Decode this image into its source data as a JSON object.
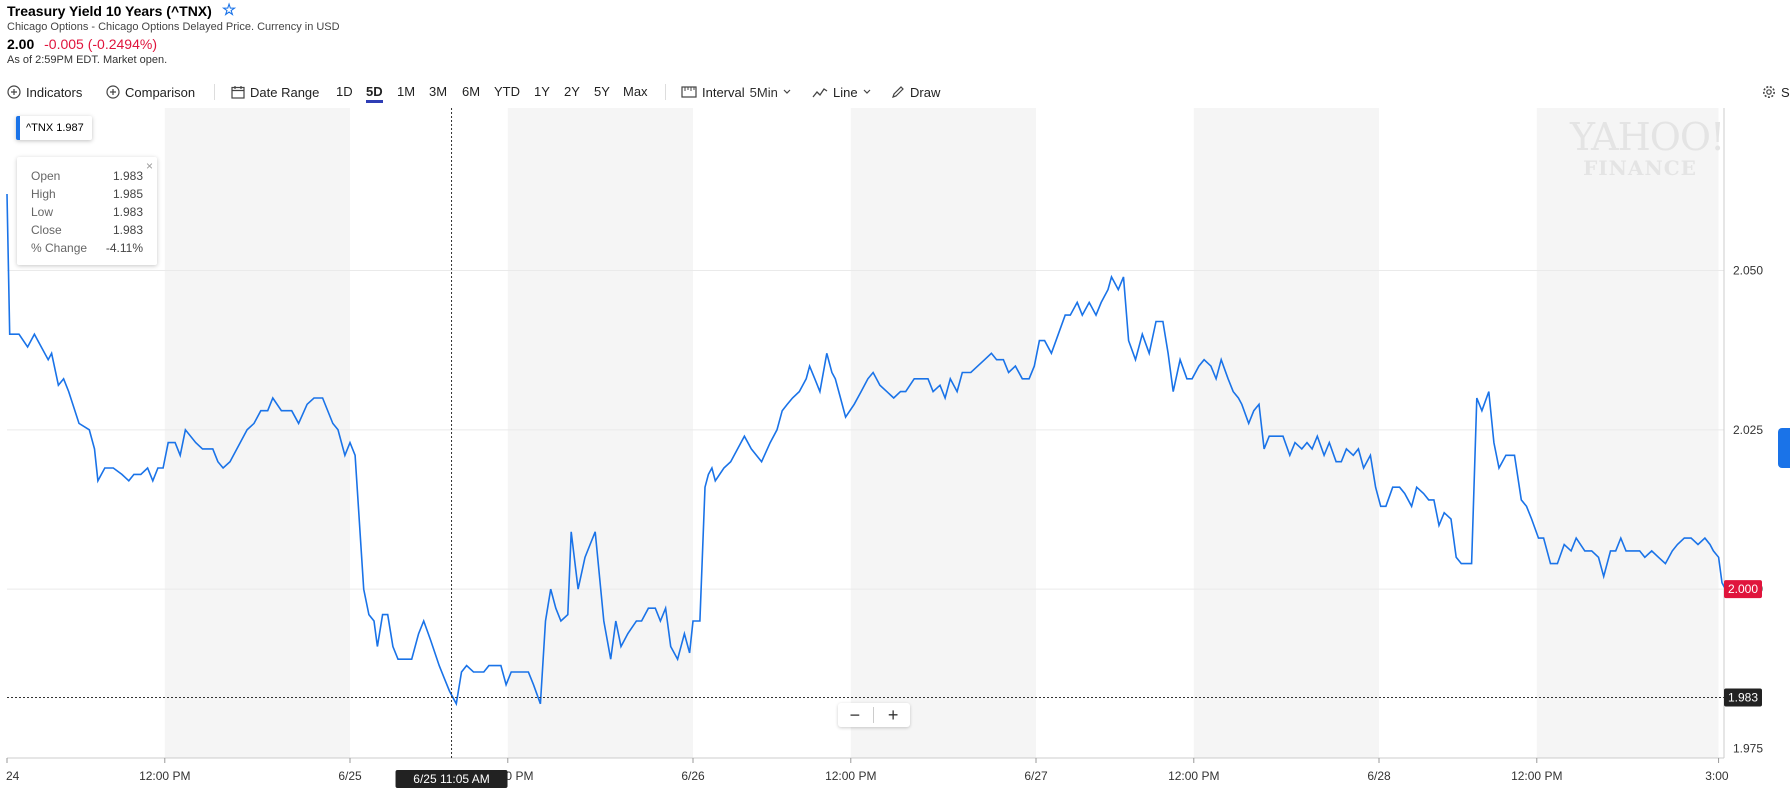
{
  "header": {
    "title": "Treasury Yield 10 Years (^TNX)",
    "source": "Chicago Options - Chicago Options Delayed Price. Currency in USD",
    "price": "2.00",
    "change": "-0.005 (-0.2494%)",
    "as_of": "As of 2:59PM EDT. Market open."
  },
  "toolbar": {
    "indicators": "Indicators",
    "comparison": "Comparison",
    "date_range": "Date Range",
    "ranges": [
      "1D",
      "5D",
      "1M",
      "3M",
      "6M",
      "YTD",
      "1Y",
      "2Y",
      "5Y",
      "Max"
    ],
    "active_range": "5D",
    "interval_label": "Interval",
    "interval_value": "5Min",
    "chart_type": "Line",
    "draw": "Draw",
    "settings_partial": "S"
  },
  "legend": {
    "label": "^TNX 1.987"
  },
  "ohlc": {
    "rows": [
      {
        "label": "Open",
        "value": "1.983"
      },
      {
        "label": "High",
        "value": "1.985"
      },
      {
        "label": "Low",
        "value": "1.983"
      },
      {
        "label": "Close",
        "value": "1.983"
      },
      {
        "label": "% Change",
        "value": "-4.11%"
      }
    ]
  },
  "crosshair_label": "6/25 11:05 AM",
  "crosshair_price": "1.983",
  "current_price_label": "2.000",
  "logo": {
    "line1": "YAHOO!",
    "line2": "FINANCE"
  },
  "colors": {
    "line": "#1a73e8",
    "negative": "#e0143c",
    "active_tab": "#2e3db5",
    "shade": "#f5f5f5"
  },
  "chart_data": {
    "type": "line",
    "title": "",
    "xlabel": "",
    "ylabel": "",
    "ylim": [
      1.9735,
      2.0755
    ],
    "y_ticks": [
      "2.050",
      "2.025",
      "2.000",
      "1.975"
    ],
    "y_tick_values": [
      2.05,
      2.025,
      2.0,
      1.975
    ],
    "x_ticks": [
      "24",
      "12:00 PM",
      "6/25",
      "12:00 PM",
      "6/26",
      "12:00 PM",
      "6/27",
      "12:00 PM",
      "6/28",
      "12:00 PM",
      "3:00"
    ],
    "x_tick_values": [
      0,
      0.46,
      1,
      1.46,
      2,
      2.46,
      3,
      3.46,
      4,
      4.46,
      4.99
    ],
    "shaded_sessions": [
      [
        0.46,
        1
      ],
      [
        1.46,
        2
      ],
      [
        2.46,
        3
      ],
      [
        3.46,
        4
      ],
      [
        4.46,
        4.99
      ]
    ],
    "x_unit": "trading days from 6/24 session start",
    "crosshair_x": 1.296,
    "series": [
      {
        "values": [
          [
            0,
            2.062
          ],
          [
            0.008,
            2.04
          ],
          [
            0.035,
            2.04
          ],
          [
            0.06,
            2.038
          ],
          [
            0.08,
            2.04
          ],
          [
            0.1,
            2.038
          ],
          [
            0.12,
            2.036
          ],
          [
            0.13,
            2.037
          ],
          [
            0.15,
            2.032
          ],
          [
            0.165,
            2.033
          ],
          [
            0.18,
            2.031
          ],
          [
            0.21,
            2.026
          ],
          [
            0.24,
            2.025
          ],
          [
            0.255,
            2.022
          ],
          [
            0.265,
            2.017
          ],
          [
            0.285,
            2.019
          ],
          [
            0.31,
            2.019
          ],
          [
            0.335,
            2.018
          ],
          [
            0.355,
            2.017
          ],
          [
            0.37,
            2.018
          ],
          [
            0.39,
            2.018
          ],
          [
            0.41,
            2.019
          ],
          [
            0.425,
            2.017
          ],
          [
            0.44,
            2.019
          ],
          [
            0.455,
            2.019
          ],
          [
            0.47,
            2.023
          ],
          [
            0.49,
            2.023
          ],
          [
            0.505,
            2.021
          ],
          [
            0.52,
            2.025
          ],
          [
            0.55,
            2.023
          ],
          [
            0.57,
            2.022
          ],
          [
            0.6,
            2.022
          ],
          [
            0.615,
            2.02
          ],
          [
            0.63,
            2.019
          ],
          [
            0.65,
            2.02
          ],
          [
            0.7,
            2.025
          ],
          [
            0.72,
            2.026
          ],
          [
            0.74,
            2.028
          ],
          [
            0.76,
            2.028
          ],
          [
            0.775,
            2.03
          ],
          [
            0.8,
            2.028
          ],
          [
            0.83,
            2.028
          ],
          [
            0.85,
            2.026
          ],
          [
            0.875,
            2.029
          ],
          [
            0.895,
            2.03
          ],
          [
            0.92,
            2.03
          ],
          [
            0.95,
            2.026
          ],
          [
            0.965,
            2.025
          ],
          [
            0.985,
            2.021
          ],
          [
            1.0,
            2.023
          ],
          [
            1.015,
            2.021
          ],
          [
            1.04,
            2.0
          ],
          [
            1.055,
            1.996
          ],
          [
            1.07,
            1.995
          ],
          [
            1.08,
            1.991
          ],
          [
            1.095,
            1.996
          ],
          [
            1.11,
            1.996
          ],
          [
            1.125,
            1.991
          ],
          [
            1.14,
            1.989
          ],
          [
            1.17,
            1.989
          ],
          [
            1.18,
            1.989
          ],
          [
            1.2,
            1.993
          ],
          [
            1.215,
            1.995
          ],
          [
            1.235,
            1.992
          ],
          [
            1.26,
            1.988
          ],
          [
            1.275,
            1.986
          ],
          [
            1.29,
            1.984
          ],
          [
            1.3,
            1.983
          ],
          [
            1.31,
            1.982
          ],
          [
            1.325,
            1.987
          ],
          [
            1.34,
            1.988
          ],
          [
            1.36,
            1.987
          ],
          [
            1.39,
            1.987
          ],
          [
            1.405,
            1.988
          ],
          [
            1.44,
            1.988
          ],
          [
            1.455,
            1.985
          ],
          [
            1.47,
            1.987
          ],
          [
            1.52,
            1.987
          ],
          [
            1.535,
            1.985
          ],
          [
            1.555,
            1.982
          ],
          [
            1.57,
            1.995
          ],
          [
            1.585,
            2.0
          ],
          [
            1.6,
            1.997
          ],
          [
            1.615,
            1.995
          ],
          [
            1.635,
            1.996
          ],
          [
            1.645,
            2.009
          ],
          [
            1.665,
            2.0
          ],
          [
            1.685,
            2.005
          ],
          [
            1.7,
            2.007
          ],
          [
            1.715,
            2.009
          ],
          [
            1.74,
            1.995
          ],
          [
            1.76,
            1.989
          ],
          [
            1.775,
            1.995
          ],
          [
            1.79,
            1.991
          ],
          [
            1.81,
            1.993
          ],
          [
            1.835,
            1.995
          ],
          [
            1.85,
            1.995
          ],
          [
            1.87,
            1.997
          ],
          [
            1.89,
            1.997
          ],
          [
            1.905,
            1.995
          ],
          [
            1.92,
            1.997
          ],
          [
            1.935,
            1.991
          ],
          [
            1.955,
            1.989
          ],
          [
            1.975,
            1.993
          ],
          [
            1.99,
            1.99
          ],
          [
            2.0,
            1.995
          ],
          [
            2.02,
            1.995
          ],
          [
            2.035,
            2.016
          ],
          [
            2.045,
            2.018
          ],
          [
            2.055,
            2.019
          ],
          [
            2.065,
            2.017
          ],
          [
            2.09,
            2.019
          ],
          [
            2.11,
            2.02
          ],
          [
            2.13,
            2.022
          ],
          [
            2.15,
            2.024
          ],
          [
            2.17,
            2.022
          ],
          [
            2.2,
            2.02
          ],
          [
            2.225,
            2.023
          ],
          [
            2.245,
            2.025
          ],
          [
            2.26,
            2.028
          ],
          [
            2.275,
            2.029
          ],
          [
            2.29,
            2.03
          ],
          [
            2.31,
            2.031
          ],
          [
            2.33,
            2.033
          ],
          [
            2.34,
            2.035
          ],
          [
            2.355,
            2.033
          ],
          [
            2.37,
            2.031
          ],
          [
            2.39,
            2.037
          ],
          [
            2.405,
            2.034
          ],
          [
            2.415,
            2.033
          ],
          [
            2.43,
            2.03
          ],
          [
            2.445,
            2.027
          ],
          [
            2.47,
            2.029
          ],
          [
            2.49,
            2.031
          ],
          [
            2.51,
            2.033
          ],
          [
            2.525,
            2.034
          ],
          [
            2.545,
            2.032
          ],
          [
            2.565,
            2.031
          ],
          [
            2.585,
            2.03
          ],
          [
            2.605,
            2.031
          ],
          [
            2.62,
            2.031
          ],
          [
            2.645,
            2.033
          ],
          [
            2.67,
            2.033
          ],
          [
            2.685,
            2.033
          ],
          [
            2.7,
            2.031
          ],
          [
            2.72,
            2.032
          ],
          [
            2.735,
            2.03
          ],
          [
            2.75,
            2.033
          ],
          [
            2.77,
            2.031
          ],
          [
            2.785,
            2.034
          ],
          [
            2.81,
            2.034
          ],
          [
            2.83,
            2.035
          ],
          [
            2.85,
            2.036
          ],
          [
            2.87,
            2.037
          ],
          [
            2.885,
            2.036
          ],
          [
            2.905,
            2.036
          ],
          [
            2.92,
            2.034
          ],
          [
            2.94,
            2.035
          ],
          [
            2.96,
            2.033
          ],
          [
            2.98,
            2.033
          ],
          [
            2.995,
            2.035
          ],
          [
            3.01,
            2.039
          ],
          [
            3.025,
            2.039
          ],
          [
            3.045,
            2.037
          ],
          [
            3.065,
            2.04
          ],
          [
            3.085,
            2.043
          ],
          [
            3.1,
            2.043
          ],
          [
            3.12,
            2.045
          ],
          [
            3.135,
            2.043
          ],
          [
            3.155,
            2.045
          ],
          [
            3.175,
            2.043
          ],
          [
            3.19,
            2.045
          ],
          [
            3.21,
            2.047
          ],
          [
            3.22,
            2.049
          ],
          [
            3.24,
            2.047
          ],
          [
            3.255,
            2.049
          ],
          [
            3.27,
            2.039
          ],
          [
            3.29,
            2.036
          ],
          [
            3.31,
            2.04
          ],
          [
            3.33,
            2.037
          ],
          [
            3.35,
            2.042
          ],
          [
            3.37,
            2.042
          ],
          [
            3.385,
            2.037
          ],
          [
            3.4,
            2.031
          ],
          [
            3.42,
            2.036
          ],
          [
            3.44,
            2.033
          ],
          [
            3.455,
            2.033
          ],
          [
            3.475,
            2.035
          ],
          [
            3.49,
            2.036
          ],
          [
            3.51,
            2.035
          ],
          [
            3.525,
            2.033
          ],
          [
            3.54,
            2.036
          ],
          [
            3.56,
            2.033
          ],
          [
            3.575,
            2.031
          ],
          [
            3.59,
            2.03
          ],
          [
            3.6,
            2.029
          ],
          [
            3.62,
            2.026
          ],
          [
            3.635,
            2.028
          ],
          [
            3.65,
            2.029
          ],
          [
            3.665,
            2.022
          ],
          [
            3.68,
            2.024
          ],
          [
            3.7,
            2.024
          ],
          [
            3.72,
            2.024
          ],
          [
            3.74,
            2.021
          ],
          [
            3.755,
            2.023
          ],
          [
            3.775,
            2.022
          ],
          [
            3.79,
            2.023
          ],
          [
            3.805,
            2.022
          ],
          [
            3.82,
            2.024
          ],
          [
            3.84,
            2.021
          ],
          [
            3.855,
            2.023
          ],
          [
            3.875,
            2.02
          ],
          [
            3.89,
            2.02
          ],
          [
            3.905,
            2.022
          ],
          [
            3.925,
            2.021
          ],
          [
            3.94,
            2.022
          ],
          [
            3.955,
            2.019
          ],
          [
            3.975,
            2.021
          ],
          [
            3.99,
            2.016
          ],
          [
            4.005,
            2.013
          ],
          [
            4.02,
            2.013
          ],
          [
            4.04,
            2.016
          ],
          [
            4.06,
            2.016
          ],
          [
            4.075,
            2.015
          ],
          [
            4.095,
            2.013
          ],
          [
            4.11,
            2.016
          ],
          [
            4.13,
            2.015
          ],
          [
            4.145,
            2.014
          ],
          [
            4.16,
            2.014
          ],
          [
            4.175,
            2.01
          ],
          [
            4.19,
            2.012
          ],
          [
            4.21,
            2.011
          ],
          [
            4.225,
            2.005
          ],
          [
            4.24,
            2.004
          ],
          [
            4.27,
            2.004
          ],
          [
            4.285,
            2.03
          ],
          [
            4.3,
            2.028
          ],
          [
            4.32,
            2.031
          ],
          [
            4.335,
            2.023
          ],
          [
            4.35,
            2.019
          ],
          [
            4.37,
            2.021
          ],
          [
            4.395,
            2.021
          ],
          [
            4.415,
            2.014
          ],
          [
            4.43,
            2.013
          ],
          [
            4.445,
            2.011
          ],
          [
            4.465,
            2.008
          ],
          [
            4.48,
            2.008
          ],
          [
            4.5,
            2.004
          ],
          [
            4.52,
            2.004
          ],
          [
            4.54,
            2.007
          ],
          [
            4.56,
            2.006
          ],
          [
            4.575,
            2.008
          ],
          [
            4.6,
            2.006
          ],
          [
            4.62,
            2.006
          ],
          [
            4.64,
            2.005
          ],
          [
            4.655,
            2.002
          ],
          [
            4.675,
            2.006
          ],
          [
            4.69,
            2.006
          ],
          [
            4.705,
            2.008
          ],
          [
            4.72,
            2.006
          ],
          [
            4.74,
            2.006
          ],
          [
            4.76,
            2.006
          ],
          [
            4.775,
            2.005
          ],
          [
            4.795,
            2.006
          ],
          [
            4.815,
            2.005
          ],
          [
            4.835,
            2.004
          ],
          [
            4.855,
            2.006
          ],
          [
            4.87,
            2.007
          ],
          [
            4.89,
            2.008
          ],
          [
            4.91,
            2.008
          ],
          [
            4.93,
            2.007
          ],
          [
            4.95,
            2.008
          ],
          [
            4.965,
            2.007
          ],
          [
            4.975,
            2.006
          ],
          [
            4.99,
            2.005
          ],
          [
            5.0,
            2.001
          ],
          [
            5.01,
            2.0
          ],
          [
            5.02,
            1.999
          ],
          [
            5.03,
            1.999
          ],
          [
            5.04,
            2.0
          ]
        ]
      }
    ]
  }
}
